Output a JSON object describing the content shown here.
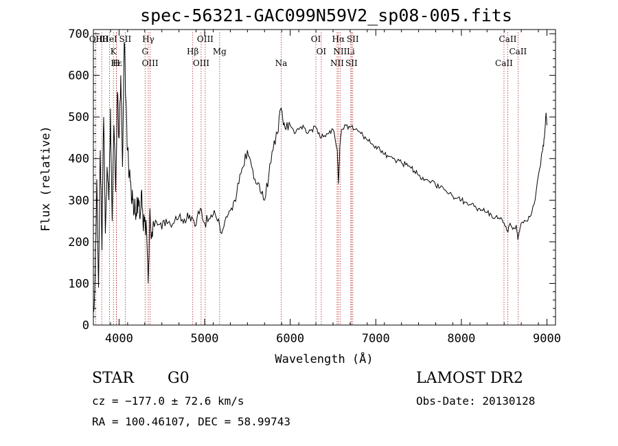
{
  "header": {
    "title": "spec-56321-GAC099N59V2_sp08-005.fits"
  },
  "footer": {
    "object_class": "STAR",
    "subclass": "G0",
    "survey": "LAMOST DR2",
    "cz": "cz = −177.0 ± 72.6 km/s",
    "obs_date": "Obs-Date: 20130128",
    "ra_dec": "RA = 100.46107, DEC =  58.99743"
  },
  "colors": {
    "spectrum": "#000000",
    "line_markers": "#b22222",
    "axes": "#000000"
  },
  "chart_data": {
    "type": "line",
    "title": "spec-56321-GAC099N59V2_sp08-005.fits",
    "xlabel": "Wavelength (Å)",
    "ylabel": "Flux (relative)",
    "xlim": [
      3700,
      9100
    ],
    "ylim": [
      0,
      710
    ],
    "x_ticks": [
      4000,
      5000,
      6000,
      7000,
      8000,
      9000
    ],
    "y_ticks": [
      0,
      100,
      200,
      300,
      400,
      500,
      600,
      700
    ],
    "grid": false,
    "series": [
      {
        "x": [
          3700,
          3720,
          3740,
          3760,
          3780,
          3800,
          3820,
          3840,
          3860,
          3880,
          3900,
          3920,
          3940,
          3960,
          3980,
          4000,
          4020,
          4040,
          4060,
          4080,
          4100,
          4120,
          4140,
          4160,
          4180,
          4200,
          4220,
          4240,
          4260,
          4280,
          4300,
          4320,
          4340,
          4360,
          4380,
          4400,
          4450,
          4500,
          4550,
          4600,
          4650,
          4700,
          4750,
          4800,
          4850,
          4900,
          4950,
          5000,
          5050,
          5100,
          5150,
          5200,
          5250,
          5300,
          5350,
          5400,
          5450,
          5500,
          5550,
          5600,
          5650,
          5700,
          5750,
          5800,
          5850,
          5890,
          5910,
          5950,
          6000,
          6050,
          6100,
          6150,
          6200,
          6250,
          6300,
          6350,
          6400,
          6450,
          6500,
          6550,
          6563,
          6580,
          6600,
          6650,
          6700,
          6750,
          6800,
          6850,
          6900,
          6950,
          7000,
          7050,
          7100,
          7150,
          7200,
          7250,
          7300,
          7350,
          7400,
          7450,
          7500,
          7550,
          7600,
          7650,
          7700,
          7750,
          7800,
          7850,
          7900,
          7950,
          8000,
          8050,
          8100,
          8150,
          8200,
          8250,
          8300,
          8350,
          8400,
          8450,
          8500,
          8540,
          8560,
          8600,
          8640,
          8660,
          8680,
          8700,
          8750,
          8800,
          8850,
          8900,
          8950,
          8970,
          8990,
          9000
        ],
        "y": [
          30,
          120,
          350,
          90,
          420,
          180,
          500,
          220,
          380,
          300,
          520,
          250,
          480,
          320,
          560,
          450,
          600,
          380,
          680,
          540,
          420,
          360,
          330,
          300,
          280,
          270,
          300,
          260,
          320,
          240,
          260,
          230,
          100,
          280,
          210,
          250,
          240,
          230,
          255,
          240,
          250,
          260,
          245,
          270,
          260,
          240,
          280,
          245,
          255,
          265,
          250,
          220,
          260,
          275,
          300,
          340,
          380,
          420,
          380,
          340,
          320,
          300,
          360,
          420,
          460,
          520,
          500,
          470,
          480,
          460,
          470,
          480,
          460,
          470,
          475,
          450,
          455,
          460,
          470,
          420,
          340,
          430,
          470,
          480,
          475,
          470,
          465,
          455,
          445,
          435,
          430,
          420,
          410,
          405,
          400,
          395,
          390,
          385,
          380,
          370,
          360,
          355,
          350,
          345,
          335,
          330,
          325,
          315,
          310,
          305,
          300,
          295,
          290,
          285,
          280,
          275,
          270,
          265,
          260,
          255,
          245,
          225,
          240,
          230,
          240,
          205,
          225,
          245,
          250,
          260,
          290,
          360,
          420,
          450,
          510,
          480
        ]
      }
    ],
    "line_markers": [
      {
        "label": "Hθ",
        "x": 3798
      },
      {
        "label": "K",
        "x": 3934
      },
      {
        "label": "H",
        "x": 3968
      },
      {
        "label": "OII",
        "x": 3727
      },
      {
        "label": "HeI",
        "x": 3889
      },
      {
        "label": "Hε",
        "x": 3970
      },
      {
        "label": "SII",
        "x": 4072
      },
      {
        "label": "G",
        "x": 4304
      },
      {
        "label": "OIII",
        "x": 4363
      },
      {
        "label": "Hγ",
        "x": 4341
      },
      {
        "label": "Hβ",
        "x": 4861
      },
      {
        "label": "OIII",
        "x": 4959
      },
      {
        "label": "OIII",
        "x": 5007
      },
      {
        "label": "Mg",
        "x": 5175
      },
      {
        "label": "Na",
        "x": 5894
      },
      {
        "label": "OI",
        "x": 6300
      },
      {
        "label": "OI",
        "x": 6363
      },
      {
        "label": "NII",
        "x": 6548
      },
      {
        "label": "Hα",
        "x": 6563
      },
      {
        "label": "NII",
        "x": 6583
      },
      {
        "label": "SII",
        "x": 6716
      },
      {
        "label": "SII",
        "x": 6731
      },
      {
        "label": "Li",
        "x": 6708
      },
      {
        "label": "CaII",
        "x": 8498
      },
      {
        "label": "CaII",
        "x": 8542
      },
      {
        "label": "CaII",
        "x": 8662
      }
    ]
  }
}
